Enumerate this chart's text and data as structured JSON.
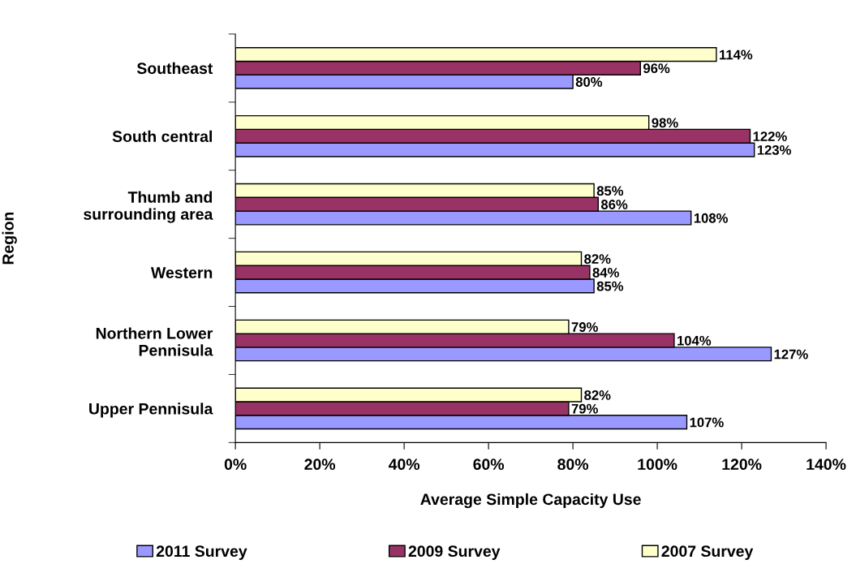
{
  "chart_data": {
    "type": "bar",
    "orientation": "horizontal",
    "xlabel": "Average Simple Capacity Use",
    "ylabel": "Region",
    "categories": [
      "Southeast",
      "South central",
      "Thumb and\nsurrounding area",
      "Western",
      "Northern Lower\nPennisula",
      "Upper Pennisula"
    ],
    "series": [
      {
        "name": "2011 Survey",
        "color": "#9999ff",
        "values": [
          80,
          123,
          108,
          85,
          127,
          107
        ],
        "value_labels": [
          "80%",
          "123%",
          "108%",
          "85%",
          "127%",
          "107%"
        ]
      },
      {
        "name": "2009 Survey",
        "color": "#993366",
        "values": [
          96,
          122,
          86,
          84,
          104,
          79
        ],
        "value_labels": [
          "96%",
          "122%",
          "86%",
          "84%",
          "104%",
          "79%"
        ]
      },
      {
        "name": "2007 Survey",
        "color": "#ffffcc",
        "values": [
          114,
          98,
          85,
          82,
          79,
          82
        ],
        "value_labels": [
          "114%",
          "98%",
          "85%",
          "82%",
          "79%",
          "82%"
        ]
      }
    ],
    "xlim": [
      0,
      140
    ],
    "xticks": [
      {
        "value": 0,
        "label": "0%"
      },
      {
        "value": 20,
        "label": "20%"
      },
      {
        "value": 40,
        "label": "40%"
      },
      {
        "value": 60,
        "label": "60%"
      },
      {
        "value": 80,
        "label": "80%"
      },
      {
        "value": 100,
        "label": "100%"
      },
      {
        "value": 120,
        "label": "120%"
      },
      {
        "value": 140,
        "label": "140%"
      }
    ],
    "grid": false,
    "legend": "bottom"
  }
}
